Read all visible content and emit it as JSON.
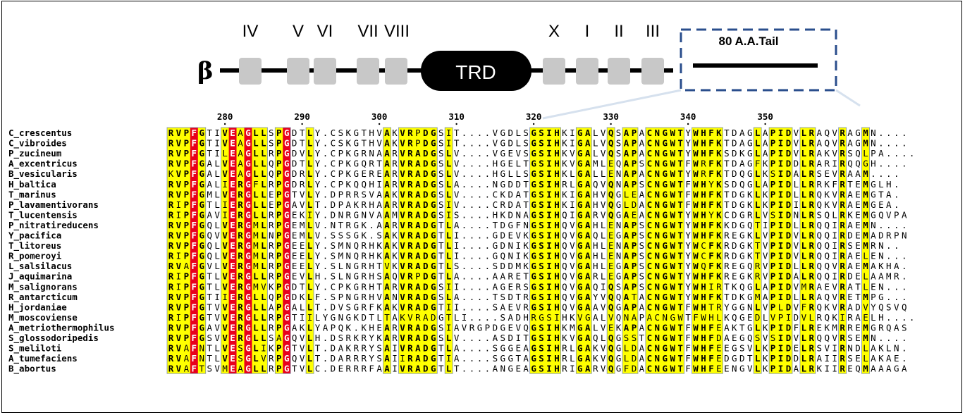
{
  "domain_diagram": {
    "beta_label": "β",
    "motif_labels": [
      "IV",
      "V",
      "VI",
      "VII",
      "VIII",
      "X",
      "I",
      "II",
      "III"
    ],
    "trd_label": "TRD",
    "tail_label": "80 A.A.Tail"
  },
  "ruler": {
    "positions": [
      "280",
      "290",
      "300",
      "310",
      "320",
      "330",
      "340",
      "350"
    ]
  },
  "alignment": {
    "sequences": [
      {
        "name": "C_crescentus",
        "seq": "RVPFGTIVEAGLLSPGDTLY.CSKGTHVAKVRPDGSIT....VGDLSGSIHKIGALVQSAPACNGWTYWHFKTDAGLAPIDVLRAQVRAGMN...."
      },
      {
        "name": "C_vibroides",
        "seq": "RVPFGTIVEAGLLSPGDTLY.CSKGTHVAKVRPDGSIT....VGDLSGSIHKIGALVQSAPACNGWTYWHFKTDAGLAPIDVLRAQVRAGMN...."
      },
      {
        "name": "P_zucineum",
        "seq": "RVPFGTILEAGLLRPGDVLY.CPKGRNAARVRADGSLV....VGEVSGSIHKVGALVQSAPACNGWTYWHFKSDKGLAPIDVLRAKVRSQLPA...."
      },
      {
        "name": "A_excentricus",
        "seq": "RVPFGALVEAGLLQPGDTLY.CPKGQRTARVRADGSLV....HGELTGSIHKVGAMLEQAPSCNGWTFWRFKTDAGFKPIDDLRARIRQQGH...."
      },
      {
        "name": "B_vesicularis",
        "seq": "KVPFGALVEAGLLQPGDRLY.CPKGEREARVRADGSLV....HGLLSGSIHKLGALLENAPACNGWTYWRFKTDQGLKSIDALRSEVRAAM...."
      },
      {
        "name": "H_baltica",
        "seq": "RVPFGALIERGFLRPGDRLY.CPKQQHIARVRADGSLA....NGDDTGSIHRLGAQVQNAPSCNGWTFWHYKSDQGLAPIDLLRRKFRTEMGLH."
      },
      {
        "name": "T_marinus",
        "seq": "RVPFGMLVERGLLEPGTVLY.DPRRSVAAKVRADGSLV....CKDATGSIHKIGAHVQGLEACNGWTFWHFKTDGKLKPIDLLRQKVRAEMGTA."
      },
      {
        "name": "P_lavamentivorans",
        "seq": "RIPFGTLIERGLLEPGAVLT.DPAKRHAARVRADGSIV....CRDATGSIHKIGAHVQGLDACNGWTFWHFKTDGKLKPIDILRQKVRAEMGEA."
      },
      {
        "name": "T_lucentensis",
        "seq": "RIPFGAVIERGLLRPGEKIY.DNRGNVAAMVRADGSIS....HKDNAGSIHQIGARVQGAEACNGWTYWHYKCDGRLVSIDNLRSQLRKEMGQVPA"
      },
      {
        "name": "P_nitratireducens",
        "seq": "RVPFGQLVERGMLRPGEMLV.NTRGK.AARVRADGTLA....TDGFNGSIHQVGAHLENAPSCNGWTYWHFKKDGQTIPIDLLRQQIRAEMN...."
      },
      {
        "name": "Y_pacifica",
        "seq": "RVPFGQVVERGMLNPGEMLV.SSSGK.SAKVRADGTLI....GDEVKGSIHQVGAQLEGAPSCNGWTYWHFKREGKLVPIDVLRQQIRDEMADRPN"
      },
      {
        "name": "T_litoreus",
        "seq": "RVPFGQLVERGMLRPGEELY.SMNQRHKAKVRADGTLI....GDNIKGSIHQVGAHLENAPSCNGWTYWCFKRDGKTVPIDVLRQQIRSEMRN.."
      },
      {
        "name": "R_pomeroyi",
        "seq": "RIPFGQLVERGMLRPGEELY.SMNQRHKAKVRADGTLI....GQNIKGSIHQVGAHLENAPSCNGWTYWCFKRDGKTVPIDVLRQQIRAELEN..."
      },
      {
        "name": "L_salsilacus",
        "seq": "RVAFGVLVERGMLRPGEELY.SLNGRHTVKVRADGTLS....SDDMKGSIHQVGAHLEGAPSCNGWTYWQFKREGQRVPIDLLRQQVRAEMAKHA."
      },
      {
        "name": "J_aquimarina",
        "seq": "RIPFGTLVERGLLRPGEVLH.SLNGRHSAQVRPDGTLA....AARETGSIHQVGARLEGAPSCNGWTYWHFKREGKRVPIDALRQQIRDELAAMR."
      },
      {
        "name": "M_salignorans",
        "seq": "RIPFGTLVERGMVKPGDTLY.CPKGRHTARVRADGSII....AGERSGSIHQVGAQIQSAPSCNGWTYWHIRTKQGLAPIDVMRAEVRATLEN..."
      },
      {
        "name": "R_antarcticum",
        "seq": "RVPFGTIIERGLLQPGDKLF.SPNGRHVANVRADGSLA....TSDTRGSIHQVGAYVQQATACNGWTYWHFKTDKGMAPIDLLRAQVRETMPG..."
      },
      {
        "name": "H_jordaniae",
        "seq": "RVPFGTVVERGLLAPGALLT.DVSGRFKAKVRADGTII....SAEVRGSIHQVGAAVQGAPACNGWTFWHTRYGGNLVPLDVFRQKVRADVYQSVQ"
      },
      {
        "name": "M_moscoviense",
        "seq": "RIPFGTVVERGLLRPGTIILYGNGKDTLTAKVRADGTLI....SADHRGSIHKVGALVQNAPACNGWTFWHLKQGEDLVPIDVLRQKIRAELH...."
      },
      {
        "name": "A_metriothermophilus",
        "seq": "RVPFGAVVERGLLRPGAKLYAPQK.KHEARVRADGSIAVRGPDGEVQGSIHKMGALVEKAPACNGWTFWHFEAKTGLKPIDFLREKMRREMGRQAS"
      },
      {
        "name": "S_glossodoripedis",
        "seq": "RVPFGSVVERGLLSAGQVLH.DSRKRYKARVRADGSLV....ASDITGSIHKVGAQLQGSSTCNGWTFWHFDAEGQSVSIDVLRQQVRSEMN...."
      },
      {
        "name": "S_meliloti",
        "seq": "RVAFNTLVESGLIKPGTVLT.DAKRRYSAIVRADGTLA....SGGEAGSIHRLGAKVQGLDACNGWTFWHFEEGSVLKPIDELRSVIRNDLAKLN."
      },
      {
        "name": "A_tumefaciens",
        "seq": "RVAFNTLVESGLVRPGQVLT.DARRRYSAIIRADGTIA....SGGTAGSIHRLGAKVQGLDACNGWTFWHFEDGDTLKPIDDLRAIIRSELAKAE."
      },
      {
        "name": "B_abortus",
        "seq": "RVAFTSVMEAGLLRPGTVLC.DERRRFAAIVRADGTLT....ANGEAGSIHRIGARVQGFDACNGWTFWHFEENGVLKPIDALRKIIREQMAAAGA"
      }
    ]
  },
  "colors": {
    "conserved_bg": "#e8001c",
    "conserved_fg": "#ffffff",
    "similar_bg": "#ffff00",
    "box_border": "#2a4e8c",
    "domain_grey": "#c8c8c8"
  }
}
